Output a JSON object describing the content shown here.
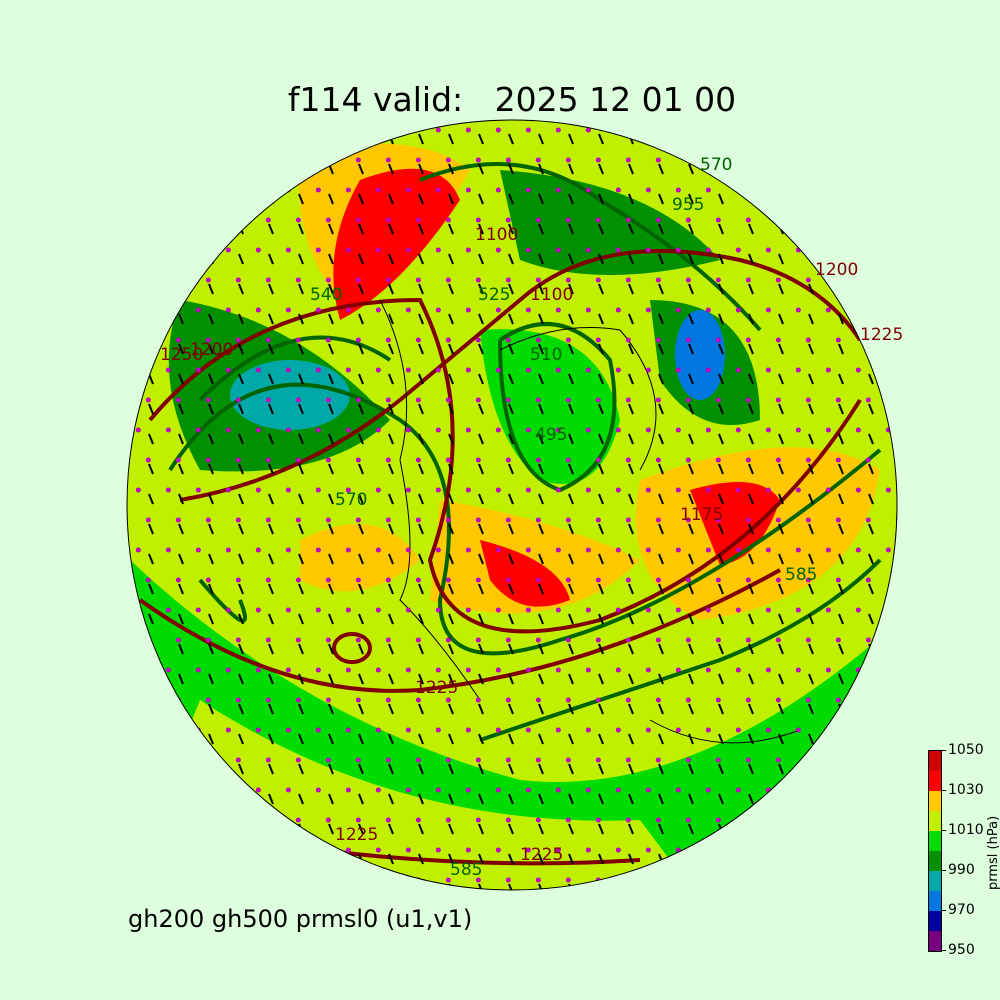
{
  "title": "f114 valid:   2025 12 01 00",
  "subtitle": "gh200 gh500 prmsl0 (u1,v1)",
  "colorbar": {
    "label": "prmsl (hPa)",
    "ticks": [
      "1050",
      "1030",
      "1010",
      "990",
      "970",
      "950"
    ],
    "bounds": [
      950,
      960,
      970,
      980,
      990,
      1000,
      1010,
      1020,
      1030,
      1040,
      1050
    ],
    "colors": [
      "#780080",
      "#0000a0",
      "#0078e0",
      "#00a8a8",
      "#009000",
      "#00dc00",
      "#c0f000",
      "#ffc800",
      "#ff0000",
      "#d00000"
    ]
  },
  "contour_colors": {
    "gh200": "#800000",
    "gh500": "#006400",
    "wind": "#000000",
    "points": "#c000c0"
  },
  "contour_labels": {
    "gh500": [
      "570",
      "955",
      "525",
      "540",
      "510",
      "495",
      "570",
      "585",
      "585"
    ],
    "gh200": [
      "1100",
      "1100",
      "1250",
      "1200",
      "1200",
      "1225",
      "1225",
      "1225",
      "1225",
      "1175"
    ]
  }
}
